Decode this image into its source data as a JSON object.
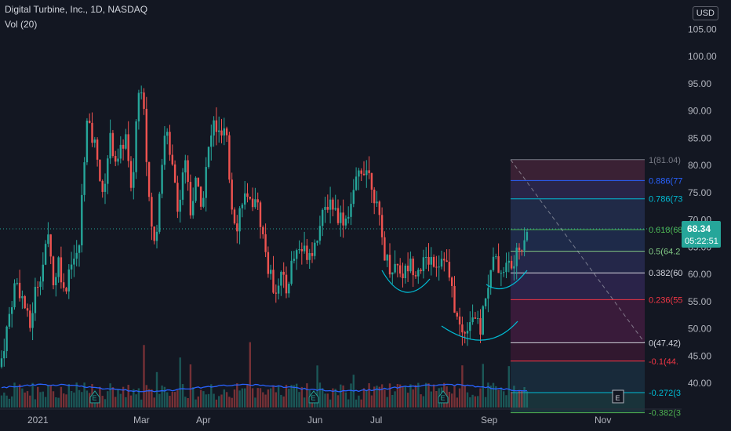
{
  "header": {
    "symbol_title": "Digital Turbine, Inc., 1D, NASDAQ",
    "indicator_label": "Vol (20)",
    "currency_button": "USD"
  },
  "price_tag": {
    "price": "68.34",
    "countdown": "05:22:51"
  },
  "colors": {
    "background": "#131722",
    "up": "#26a69a",
    "down": "#ef5350",
    "volume_ma": "#2962ff",
    "text": "#d1d4dc",
    "axis_text": "#b2b5be"
  },
  "chart_data": {
    "type": "candlestick",
    "y_axis": {
      "ticks": [
        "40.00",
        "45.00",
        "50.00",
        "55.00",
        "60.00",
        "65.00",
        "70.00",
        "75.00",
        "80.00",
        "85.00",
        "90.00",
        "95.00",
        "100.00",
        "105.00"
      ],
      "range": [
        35.8,
        108.2
      ]
    },
    "x_axis": {
      "labels": [
        "2021",
        "Mar",
        "Apr",
        "Jun",
        "Jul",
        "Sep",
        "Nov"
      ]
    },
    "price_series_trend": [
      {
        "t": 0,
        "v": 43
      },
      {
        "t": 20,
        "v": 59
      },
      {
        "t": 30,
        "v": 55
      },
      {
        "t": 38,
        "v": 50
      },
      {
        "t": 45,
        "v": 57
      },
      {
        "t": 55,
        "v": 62
      },
      {
        "t": 63,
        "v": 68
      },
      {
        "t": 68,
        "v": 58
      },
      {
        "t": 75,
        "v": 63
      },
      {
        "t": 82,
        "v": 56
      },
      {
        "t": 90,
        "v": 63
      },
      {
        "t": 100,
        "v": 63
      },
      {
        "t": 110,
        "v": 88
      },
      {
        "t": 125,
        "v": 82
      },
      {
        "t": 130,
        "v": 73
      },
      {
        "t": 140,
        "v": 85
      },
      {
        "t": 150,
        "v": 80
      },
      {
        "t": 160,
        "v": 86
      },
      {
        "t": 168,
        "v": 73
      },
      {
        "t": 175,
        "v": 92
      },
      {
        "t": 182,
        "v": 96
      },
      {
        "t": 190,
        "v": 73
      },
      {
        "t": 198,
        "v": 64
      },
      {
        "t": 205,
        "v": 80
      },
      {
        "t": 212,
        "v": 86
      },
      {
        "t": 220,
        "v": 81
      },
      {
        "t": 228,
        "v": 71
      },
      {
        "t": 235,
        "v": 83
      },
      {
        "t": 243,
        "v": 72
      },
      {
        "t": 250,
        "v": 77
      },
      {
        "t": 258,
        "v": 73
      },
      {
        "t": 265,
        "v": 82
      },
      {
        "t": 273,
        "v": 88
      },
      {
        "t": 280,
        "v": 85
      },
      {
        "t": 288,
        "v": 86
      },
      {
        "t": 295,
        "v": 73
      },
      {
        "t": 302,
        "v": 69
      },
      {
        "t": 310,
        "v": 75
      },
      {
        "t": 318,
        "v": 72
      },
      {
        "t": 325,
        "v": 75
      },
      {
        "t": 333,
        "v": 69
      },
      {
        "t": 342,
        "v": 61
      },
      {
        "t": 350,
        "v": 57
      },
      {
        "t": 358,
        "v": 60
      },
      {
        "t": 365,
        "v": 57
      },
      {
        "t": 372,
        "v": 62
      },
      {
        "t": 380,
        "v": 65
      },
      {
        "t": 390,
        "v": 64
      },
      {
        "t": 400,
        "v": 65
      },
      {
        "t": 410,
        "v": 70
      },
      {
        "t": 420,
        "v": 74
      },
      {
        "t": 430,
        "v": 71
      },
      {
        "t": 440,
        "v": 70
      },
      {
        "t": 450,
        "v": 74
      },
      {
        "t": 458,
        "v": 79
      },
      {
        "t": 466,
        "v": 80
      },
      {
        "t": 474,
        "v": 77
      },
      {
        "t": 482,
        "v": 71
      },
      {
        "t": 490,
        "v": 64
      },
      {
        "t": 498,
        "v": 61
      },
      {
        "t": 506,
        "v": 62
      },
      {
        "t": 514,
        "v": 60
      },
      {
        "t": 522,
        "v": 62
      },
      {
        "t": 530,
        "v": 61
      },
      {
        "t": 540,
        "v": 62
      },
      {
        "t": 550,
        "v": 63
      },
      {
        "t": 558,
        "v": 62
      },
      {
        "t": 566,
        "v": 64
      },
      {
        "t": 572,
        "v": 60
      },
      {
        "t": 578,
        "v": 55
      },
      {
        "t": 584,
        "v": 51
      },
      {
        "t": 590,
        "v": 49
      },
      {
        "t": 596,
        "v": 51
      },
      {
        "t": 604,
        "v": 53
      },
      {
        "t": 612,
        "v": 49
      },
      {
        "t": 618,
        "v": 56
      },
      {
        "t": 624,
        "v": 59
      },
      {
        "t": 630,
        "v": 63
      },
      {
        "t": 636,
        "v": 61
      },
      {
        "t": 642,
        "v": 61
      },
      {
        "t": 648,
        "v": 62
      },
      {
        "t": 654,
        "v": 61
      },
      {
        "t": 660,
        "v": 64
      },
      {
        "t": 666,
        "v": 66
      },
      {
        "t": 672,
        "v": 68.34
      }
    ],
    "fibonacci_levels": [
      {
        "label": "1(81.04)",
        "ratio": 1,
        "price": 81.04
      },
      {
        "label": "0.886(77",
        "ratio": 0.886,
        "price": 77.21
      },
      {
        "label": "0.786(73",
        "ratio": 0.786,
        "price": 73.85
      },
      {
        "label": "0.618(68",
        "ratio": 0.618,
        "price": 68.2
      },
      {
        "label": "0.5(64.2",
        "ratio": 0.5,
        "price": 64.23
      },
      {
        "label": "0.382(60",
        "ratio": 0.382,
        "price": 60.26
      },
      {
        "label": "0.236(55",
        "ratio": 0.236,
        "price": 55.35
      },
      {
        "label": "0(47.42)",
        "ratio": 0,
        "price": 47.42
      },
      {
        "label": "-0.1(44.",
        "ratio": -0.1,
        "price": 44.06
      },
      {
        "label": "-0.272(3",
        "ratio": -0.272,
        "price": 38.27
      },
      {
        "label": "-0.382(3",
        "ratio": -0.382,
        "price": 34.58
      }
    ],
    "event_markers": [
      "E",
      "E",
      "E",
      "E",
      "E"
    ],
    "grid": false,
    "legend": "top-left"
  }
}
